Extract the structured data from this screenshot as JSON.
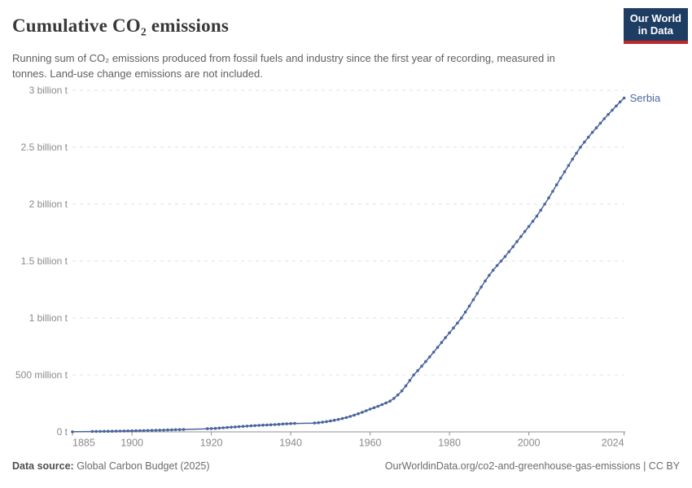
{
  "header": {
    "title": "Cumulative CO₂ emissions",
    "subtitle": "Running sum of CO₂ emissions produced from fossil fuels and industry since the first year of recording, measured in tonnes. Land-use change emissions are not included.",
    "logo": {
      "line1": "Our World",
      "line2": "in Data"
    }
  },
  "footer": {
    "source_label": "Data source:",
    "source_text": "Global Carbon Budget (2025)",
    "credit": "OurWorldinData.org/co2-and-greenhouse-gas-emissions | CC BY"
  },
  "colors": {
    "line": "#49659e",
    "entity_label": "#4c6a9c",
    "grid": "#e0e0e0",
    "axis": "#8f8f8f",
    "axis_label": "#8a8a8a",
    "logo_bg": "#1d3d63",
    "logo_red": "#be282d"
  },
  "chart_data": {
    "type": "line",
    "title": "Cumulative CO₂ emissions",
    "unit": "tonnes",
    "grid": "horizontal-dashed",
    "legend_position": "end-of-line-label",
    "xlim": [
      1885,
      2024
    ],
    "ylim_tonnes": [
      0,
      3000000000
    ],
    "x_ticks": [
      1885,
      1900,
      1920,
      1940,
      1960,
      1980,
      2000,
      2024
    ],
    "y_ticks": [
      {
        "value_million_t": 0,
        "label": "0 t"
      },
      {
        "value_million_t": 500,
        "label": "500 million t"
      },
      {
        "value_million_t": 1000,
        "label": "1 billion t"
      },
      {
        "value_million_t": 1500,
        "label": "1.5 billion t"
      },
      {
        "value_million_t": 2000,
        "label": "2 billion t"
      },
      {
        "value_million_t": 2500,
        "label": "2.5 billion t"
      },
      {
        "value_million_t": 3000,
        "label": "3 billion t"
      }
    ],
    "series": [
      {
        "name": "Serbia",
        "start_year": 1885,
        "values_million_t": [
          1,
          1.5,
          2,
          2.5,
          3,
          3.5,
          4,
          4.5,
          5,
          5.5,
          6,
          6.6,
          7.2,
          7.8,
          8.4,
          9,
          9.7,
          10.4,
          11.2,
          12,
          13,
          14,
          15,
          16,
          17,
          18,
          19,
          20,
          21,
          22,
          23,
          24,
          25,
          26,
          27.5,
          29,
          31,
          33.5,
          36,
          38.5,
          41,
          43.5,
          46,
          48.5,
          51,
          53,
          55,
          57,
          59,
          60.5,
          62,
          64,
          66.5,
          69,
          71,
          73,
          74,
          74.5,
          75,
          75.5,
          76,
          78,
          81,
          85,
          90,
          96,
          102,
          109,
          117,
          126,
          136,
          147,
          159,
          172,
          186,
          200,
          212,
          225,
          239,
          254,
          270,
          294,
          324,
          360,
          404,
          452,
          500,
          538,
          577,
          617,
          658,
          700,
          742,
          785,
          828,
          870,
          913,
          956,
          1000,
          1052,
          1105,
          1160,
          1216,
          1272,
          1326,
          1376,
          1420,
          1461,
          1500,
          1540,
          1582,
          1626,
          1671,
          1716,
          1760,
          1804,
          1849,
          1895,
          1947,
          2000,
          2055,
          2112,
          2170,
          2228,
          2284,
          2340,
          2395,
          2448,
          2500,
          2545,
          2588,
          2630,
          2670,
          2710,
          2750,
          2788,
          2826,
          2862,
          2898,
          2932
        ],
        "years_without_markers": [
          1886,
          1887,
          1888,
          1889,
          1914,
          1915,
          1916,
          1917,
          1918,
          1942,
          1943,
          1944,
          1945
        ]
      }
    ]
  }
}
